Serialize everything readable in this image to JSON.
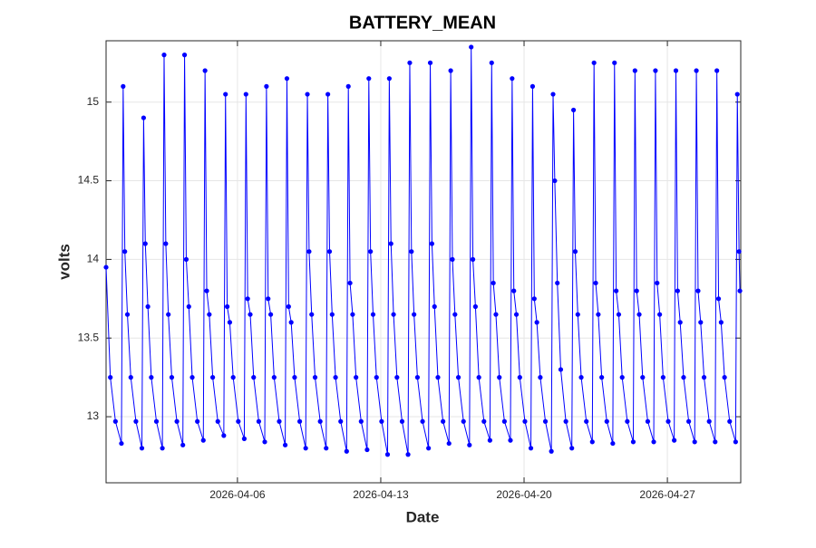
{
  "chart_data": {
    "type": "line",
    "title": "BATTERY_MEAN",
    "x_label": "Date",
    "y_label": "volts",
    "x": [
      "2026-03-30 14:00",
      "2026-03-30 19:00",
      "2026-03-31 01:00",
      "2026-03-31 08:00",
      "2026-03-31 10:00",
      "2026-03-31 12:00",
      "2026-03-31 15:00",
      "2026-03-31 19:00",
      "2026-04-01 01:00",
      "2026-04-01 08:00",
      "2026-04-01 10:00",
      "2026-04-01 12:00",
      "2026-04-01 15:00",
      "2026-04-01 19:00",
      "2026-04-02 01:00",
      "2026-04-02 08:00",
      "2026-04-02 10:00",
      "2026-04-02 12:00",
      "2026-04-02 15:00",
      "2026-04-02 19:00",
      "2026-04-03 01:00",
      "2026-04-03 08:00",
      "2026-04-03 10:00",
      "2026-04-03 12:00",
      "2026-04-03 15:00",
      "2026-04-03 19:00",
      "2026-04-04 01:00",
      "2026-04-04 08:00",
      "2026-04-04 10:00",
      "2026-04-04 12:00",
      "2026-04-04 15:00",
      "2026-04-04 19:00",
      "2026-04-05 01:00",
      "2026-04-05 08:00",
      "2026-04-05 10:00",
      "2026-04-05 12:00",
      "2026-04-05 15:00",
      "2026-04-05 19:00",
      "2026-04-06 01:00",
      "2026-04-06 08:00",
      "2026-04-06 10:00",
      "2026-04-06 12:00",
      "2026-04-06 15:00",
      "2026-04-06 19:00",
      "2026-04-07 01:00",
      "2026-04-07 08:00",
      "2026-04-07 10:00",
      "2026-04-07 12:00",
      "2026-04-07 15:00",
      "2026-04-07 19:00",
      "2026-04-08 01:00",
      "2026-04-08 08:00",
      "2026-04-08 10:00",
      "2026-04-08 12:00",
      "2026-04-08 15:00",
      "2026-04-08 19:00",
      "2026-04-09 01:00",
      "2026-04-09 08:00",
      "2026-04-09 10:00",
      "2026-04-09 12:00",
      "2026-04-09 15:00",
      "2026-04-09 19:00",
      "2026-04-10 01:00",
      "2026-04-10 08:00",
      "2026-04-10 10:00",
      "2026-04-10 12:00",
      "2026-04-10 15:00",
      "2026-04-10 19:00",
      "2026-04-11 01:00",
      "2026-04-11 08:00",
      "2026-04-11 10:00",
      "2026-04-11 12:00",
      "2026-04-11 15:00",
      "2026-04-11 19:00",
      "2026-04-12 01:00",
      "2026-04-12 08:00",
      "2026-04-12 10:00",
      "2026-04-12 12:00",
      "2026-04-12 15:00",
      "2026-04-12 19:00",
      "2026-04-13 01:00",
      "2026-04-13 08:00",
      "2026-04-13 10:00",
      "2026-04-13 12:00",
      "2026-04-13 15:00",
      "2026-04-13 19:00",
      "2026-04-14 01:00",
      "2026-04-14 08:00",
      "2026-04-14 10:00",
      "2026-04-14 12:00",
      "2026-04-14 15:00",
      "2026-04-14 19:00",
      "2026-04-15 01:00",
      "2026-04-15 08:00",
      "2026-04-15 10:00",
      "2026-04-15 12:00",
      "2026-04-15 15:00",
      "2026-04-15 19:00",
      "2026-04-16 01:00",
      "2026-04-16 08:00",
      "2026-04-16 10:00",
      "2026-04-16 12:00",
      "2026-04-16 15:00",
      "2026-04-16 19:00",
      "2026-04-17 01:00",
      "2026-04-17 08:00",
      "2026-04-17 10:00",
      "2026-04-17 12:00",
      "2026-04-17 15:00",
      "2026-04-17 19:00",
      "2026-04-18 01:00",
      "2026-04-18 08:00",
      "2026-04-18 10:00",
      "2026-04-18 12:00",
      "2026-04-18 15:00",
      "2026-04-18 19:00",
      "2026-04-19 01:00",
      "2026-04-19 08:00",
      "2026-04-19 10:00",
      "2026-04-19 12:00",
      "2026-04-19 15:00",
      "2026-04-19 19:00",
      "2026-04-20 01:00",
      "2026-04-20 08:00",
      "2026-04-20 10:00",
      "2026-04-20 12:00",
      "2026-04-20 15:00",
      "2026-04-20 19:00",
      "2026-04-21 01:00",
      "2026-04-21 08:00",
      "2026-04-21 10:00",
      "2026-04-21 12:00",
      "2026-04-21 15:00",
      "2026-04-21 19:00",
      "2026-04-22 01:00",
      "2026-04-22 08:00",
      "2026-04-22 10:00",
      "2026-04-22 12:00",
      "2026-04-22 15:00",
      "2026-04-22 19:00",
      "2026-04-23 01:00",
      "2026-04-23 08:00",
      "2026-04-23 10:00",
      "2026-04-23 12:00",
      "2026-04-23 15:00",
      "2026-04-23 19:00",
      "2026-04-24 01:00",
      "2026-04-24 08:00",
      "2026-04-24 10:00",
      "2026-04-24 12:00",
      "2026-04-24 15:00",
      "2026-04-24 19:00",
      "2026-04-25 01:00",
      "2026-04-25 08:00",
      "2026-04-25 10:00",
      "2026-04-25 12:00",
      "2026-04-25 15:00",
      "2026-04-25 19:00",
      "2026-04-26 01:00",
      "2026-04-26 08:00",
      "2026-04-26 10:00",
      "2026-04-26 12:00",
      "2026-04-26 15:00",
      "2026-04-26 19:00",
      "2026-04-27 01:00",
      "2026-04-27 08:00",
      "2026-04-27 10:00",
      "2026-04-27 12:00",
      "2026-04-27 15:00",
      "2026-04-27 19:00",
      "2026-04-28 01:00",
      "2026-04-28 08:00",
      "2026-04-28 10:00",
      "2026-04-28 12:00",
      "2026-04-28 15:00",
      "2026-04-28 19:00",
      "2026-04-29 01:00",
      "2026-04-29 08:00",
      "2026-04-29 10:00",
      "2026-04-29 12:00",
      "2026-04-29 15:00",
      "2026-04-29 19:00",
      "2026-04-30 01:00",
      "2026-04-30 08:00",
      "2026-04-30 10:00",
      "2026-04-30 12:00",
      "2026-04-30 13:00"
    ],
    "series": [
      {
        "color": "#0000ff",
        "values": [
          13.95,
          13.25,
          12.97,
          12.83,
          15.1,
          14.05,
          13.65,
          13.25,
          12.97,
          12.8,
          14.9,
          14.1,
          13.7,
          13.25,
          12.97,
          12.8,
          15.3,
          14.1,
          13.65,
          13.25,
          12.97,
          12.82,
          15.3,
          14.0,
          13.7,
          13.25,
          12.97,
          12.85,
          15.2,
          13.8,
          13.65,
          13.25,
          12.97,
          12.88,
          15.05,
          13.7,
          13.6,
          13.25,
          12.97,
          12.86,
          15.05,
          13.75,
          13.65,
          13.25,
          12.97,
          12.84,
          15.1,
          13.75,
          13.65,
          13.25,
          12.97,
          12.82,
          15.15,
          13.7,
          13.6,
          13.25,
          12.97,
          12.8,
          15.05,
          14.05,
          13.65,
          13.25,
          12.97,
          12.8,
          15.05,
          14.05,
          13.65,
          13.25,
          12.97,
          12.78,
          15.1,
          13.85,
          13.65,
          13.25,
          12.97,
          12.79,
          15.15,
          14.05,
          13.65,
          13.25,
          12.97,
          12.76,
          15.15,
          14.1,
          13.65,
          13.25,
          12.97,
          12.76,
          15.25,
          14.05,
          13.65,
          13.25,
          12.97,
          12.8,
          15.25,
          14.1,
          13.7,
          13.25,
          12.97,
          12.83,
          15.2,
          14.0,
          13.65,
          13.25,
          12.97,
          12.82,
          15.35,
          14.0,
          13.7,
          13.25,
          12.97,
          12.85,
          15.25,
          13.85,
          13.65,
          13.25,
          12.97,
          12.85,
          15.15,
          13.8,
          13.65,
          13.25,
          12.97,
          12.8,
          15.1,
          13.75,
          13.6,
          13.25,
          12.97,
          12.78,
          15.05,
          14.5,
          13.85,
          13.3,
          12.97,
          12.8,
          14.95,
          14.05,
          13.65,
          13.25,
          12.97,
          12.84,
          15.25,
          13.85,
          13.65,
          13.25,
          12.97,
          12.83,
          15.25,
          13.8,
          13.65,
          13.25,
          12.97,
          12.84,
          15.2,
          13.8,
          13.65,
          13.25,
          12.97,
          12.84,
          15.2,
          13.85,
          13.65,
          13.25,
          12.97,
          12.85,
          15.2,
          13.8,
          13.6,
          13.25,
          12.97,
          12.84,
          15.2,
          13.8,
          13.6,
          13.25,
          12.97,
          12.84,
          15.2,
          13.75,
          13.6,
          13.25,
          12.97,
          12.84,
          15.05,
          14.05,
          13.8
        ]
      }
    ],
    "xlim": [
      "2026-03-30 14:00",
      "2026-04-30 14:00"
    ],
    "xticks": [
      "2026-04-06",
      "2026-04-13",
      "2026-04-20",
      "2026-04-27"
    ],
    "ylim": [
      12.58,
      15.39
    ],
    "yticks": [
      13,
      13.5,
      14,
      14.5,
      15
    ],
    "grid": true
  }
}
